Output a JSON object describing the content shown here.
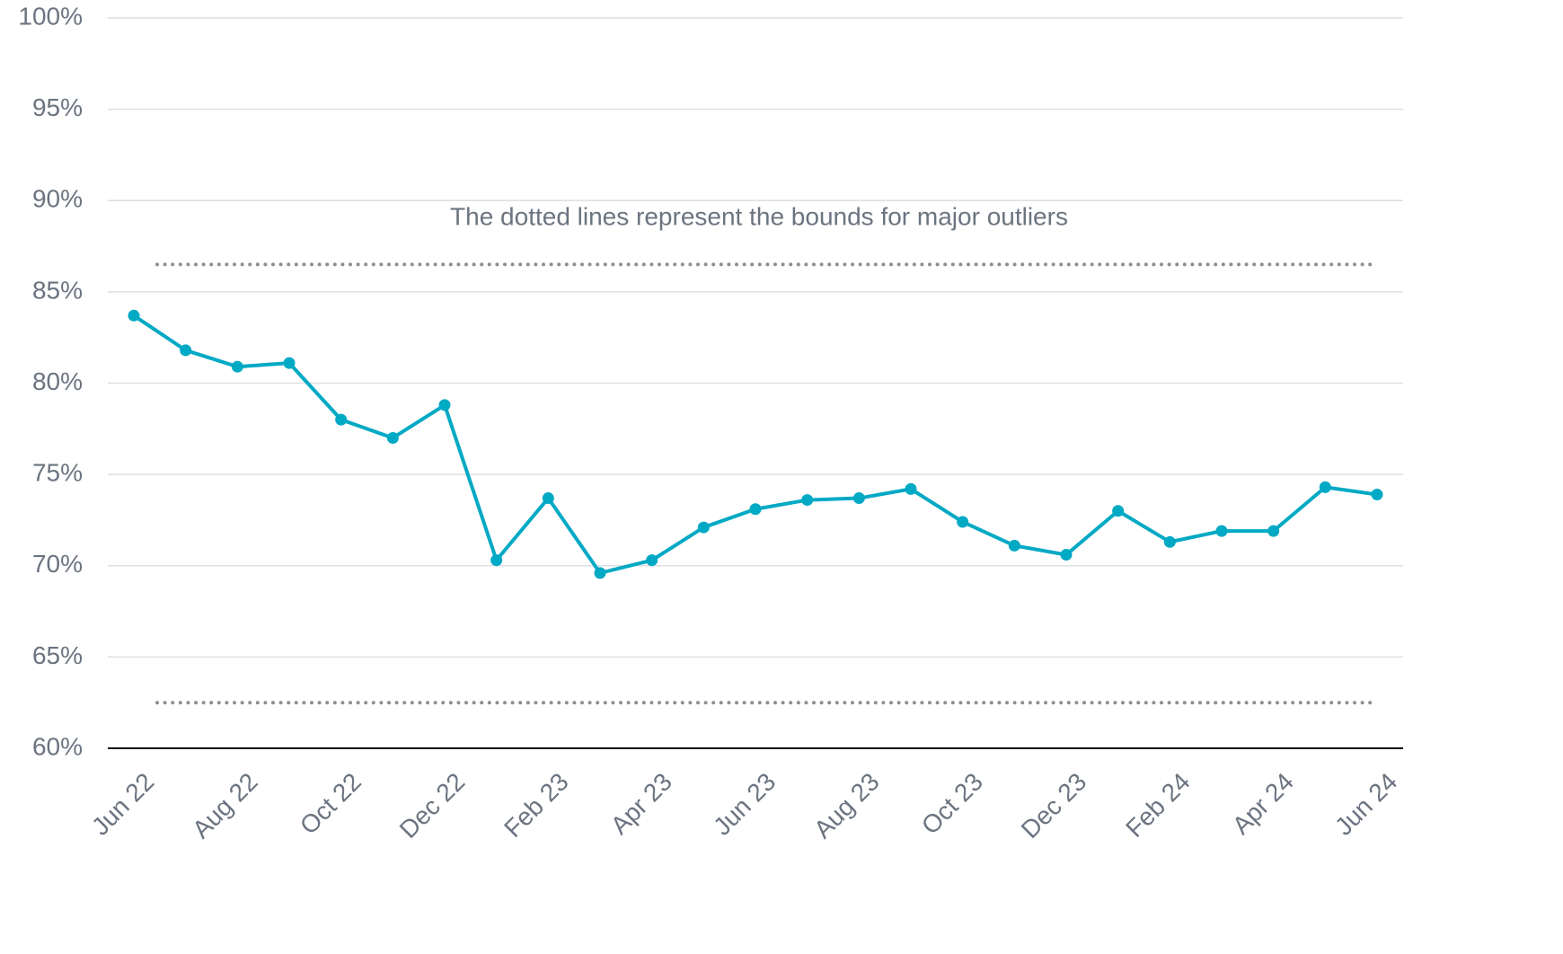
{
  "chart_data": {
    "type": "line",
    "categories": [
      "Jun 22",
      null,
      "Aug 22",
      null,
      "Oct 22",
      null,
      "Dec 22",
      null,
      "Feb 23",
      null,
      "Apr 23",
      null,
      "Jun 23",
      null,
      "Aug 23",
      null,
      "Oct 23",
      null,
      "Dec 23",
      null,
      "Feb 24",
      null,
      "Apr 24",
      null,
      "Jun 24"
    ],
    "values": [
      83.7,
      81.8,
      80.9,
      81.1,
      78.0,
      77.0,
      78.8,
      70.3,
      73.7,
      69.6,
      70.3,
      72.1,
      73.1,
      73.6,
      73.7,
      74.2,
      72.4,
      71.1,
      70.6,
      73.0,
      71.3,
      71.9,
      71.9,
      74.3,
      73.9
    ],
    "color": "#00a9c4",
    "ylim": [
      60,
      100
    ],
    "yticks": [
      {
        "value": 60,
        "label": "60%"
      },
      {
        "value": 65,
        "label": "65%"
      },
      {
        "value": 70,
        "label": "70%"
      },
      {
        "value": 75,
        "label": "75%"
      },
      {
        "value": 80,
        "label": "80%"
      },
      {
        "value": 85,
        "label": "85%"
      },
      {
        "value": 90,
        "label": "90%"
      },
      {
        "value": 95,
        "label": "95%"
      },
      {
        "value": 100,
        "label": "100%"
      }
    ],
    "grid": true,
    "reference_lines": [
      {
        "value": 86.5,
        "style": "dotted",
        "color": "#8a8f96"
      },
      {
        "value": 62.5,
        "style": "dotted",
        "color": "#8a8f96"
      }
    ],
    "annotation": "The dotted lines represent the bounds for major outliers"
  }
}
